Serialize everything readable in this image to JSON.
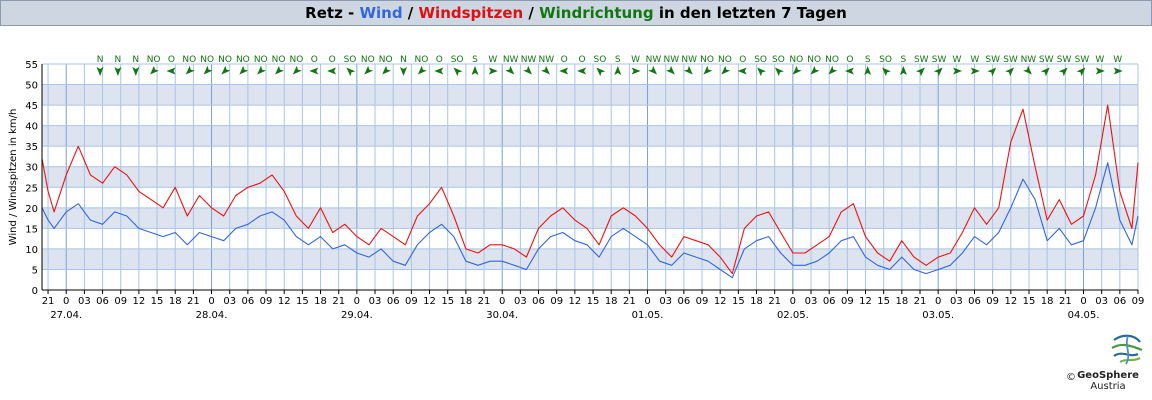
{
  "title": {
    "station": "Retz",
    "sep1": " - ",
    "wind": "Wind",
    "sep2": " / ",
    "gusts": "Windspitzen",
    "sep3": " / ",
    "direction": "Windrichtung",
    "suffix": " in den letzten 7 Tagen"
  },
  "logo": {
    "name": "GeoSphere",
    "sub": "Austria",
    "copyright": "©"
  },
  "colors": {
    "wind": "#3366dd",
    "gusts": "#ee1111",
    "direction": "#117711",
    "band": "#dde4ef",
    "grid": "#a8c4e8"
  },
  "chart_data": {
    "type": "line",
    "ylabel": "Wind / Windspitzen in km/h",
    "ylim": [
      0,
      55
    ],
    "yticks": [
      0,
      5,
      10,
      15,
      20,
      25,
      30,
      35,
      40,
      45,
      50,
      55
    ],
    "x_start_hour": 20,
    "x_span_hours": 181,
    "hour_ticks": [
      "21",
      "0",
      "03",
      "06",
      "09",
      "12",
      "15",
      "18",
      "21",
      "0",
      "03",
      "06",
      "09",
      "12",
      "15",
      "18",
      "21",
      "0",
      "03",
      "06",
      "09",
      "12",
      "15",
      "18",
      "21",
      "0",
      "03",
      "06",
      "09",
      "12",
      "15",
      "18",
      "21",
      "0",
      "03",
      "06",
      "09",
      "12",
      "15",
      "18",
      "21",
      "0",
      "03",
      "06",
      "09",
      "12",
      "15",
      "18",
      "21",
      "0",
      "03",
      "06",
      "09",
      "12",
      "15",
      "18",
      "21",
      "0",
      "03",
      "06",
      "09"
    ],
    "dates": [
      "27.04.",
      "28.04.",
      "29.04.",
      "30.04.",
      "01.05.",
      "02.05.",
      "03.05.",
      "04.05."
    ],
    "direction_labels": [
      "N",
      "N",
      "N",
      "NO",
      "O",
      "NO",
      "NO",
      "NO",
      "NO",
      "NO",
      "NO",
      "NO",
      "O",
      "O",
      "SO",
      "NO",
      "NO",
      "N",
      "NO",
      "O",
      "SO",
      "S",
      "W",
      "NW",
      "NW",
      "NW",
      "O",
      "O",
      "SO",
      "S",
      "W",
      "NW",
      "NW",
      "NW",
      "NO",
      "NO",
      "O",
      "SO",
      "SO",
      "NO",
      "NO",
      "NO",
      "O",
      "S",
      "SO",
      "S",
      "SW",
      "SW",
      "W",
      "W",
      "SW",
      "SW",
      "NW",
      "SW",
      "SW",
      "SW",
      "W",
      "W"
    ],
    "series": [
      {
        "name": "Wind",
        "x": [
          20,
          21,
          22,
          24,
          26,
          28,
          30,
          32,
          34,
          36,
          38,
          40,
          42,
          44,
          46,
          48,
          50,
          52,
          54,
          56,
          58,
          60,
          62,
          64,
          66,
          68,
          70,
          72,
          74,
          76,
          78,
          80,
          82,
          84,
          86,
          88,
          90,
          92,
          94,
          96,
          98,
          100,
          102,
          104,
          106,
          108,
          110,
          112,
          114,
          116,
          118,
          120,
          122,
          124,
          126,
          128,
          130,
          132,
          134,
          136,
          138,
          140,
          142,
          144,
          146,
          148,
          150,
          152,
          154,
          156,
          158,
          160,
          162,
          164,
          166,
          168,
          170,
          172,
          174,
          176,
          178,
          180,
          182,
          184,
          186,
          188,
          190,
          192,
          194,
          196,
          198,
          200,
          201
        ],
        "values": [
          20,
          17,
          15,
          19,
          21,
          17,
          16,
          19,
          18,
          15,
          14,
          13,
          14,
          11,
          14,
          13,
          12,
          15,
          16,
          18,
          19,
          17,
          13,
          11,
          13,
          10,
          11,
          9,
          8,
          10,
          7,
          6,
          11,
          14,
          16,
          13,
          7,
          6,
          7,
          7,
          6,
          5,
          10,
          13,
          14,
          12,
          11,
          8,
          13,
          15,
          13,
          11,
          7,
          6,
          9,
          8,
          7,
          5,
          3,
          10,
          12,
          13,
          9,
          6,
          6,
          7,
          9,
          12,
          13,
          8,
          6,
          5,
          8,
          5,
          4,
          5,
          6,
          9,
          13,
          11,
          14,
          20,
          27,
          22,
          12,
          15,
          11,
          12,
          20,
          31,
          17,
          11,
          18
        ]
      },
      {
        "name": "Windspitzen",
        "x": [
          20,
          21,
          22,
          24,
          26,
          28,
          30,
          32,
          34,
          36,
          38,
          40,
          42,
          44,
          46,
          48,
          50,
          52,
          54,
          56,
          58,
          60,
          62,
          64,
          66,
          68,
          70,
          72,
          74,
          76,
          78,
          80,
          82,
          84,
          86,
          88,
          90,
          92,
          94,
          96,
          98,
          100,
          102,
          104,
          106,
          108,
          110,
          112,
          114,
          116,
          118,
          120,
          122,
          124,
          126,
          128,
          130,
          132,
          134,
          136,
          138,
          140,
          142,
          144,
          146,
          148,
          150,
          152,
          154,
          156,
          158,
          160,
          162,
          164,
          166,
          168,
          170,
          172,
          174,
          176,
          178,
          180,
          182,
          184,
          186,
          188,
          190,
          192,
          194,
          196,
          198,
          200,
          201
        ],
        "values": [
          32,
          24,
          19,
          28,
          35,
          28,
          26,
          30,
          28,
          24,
          22,
          20,
          25,
          18,
          23,
          20,
          18,
          23,
          25,
          26,
          28,
          24,
          18,
          15,
          20,
          14,
          16,
          13,
          11,
          15,
          13,
          11,
          18,
          21,
          25,
          18,
          10,
          9,
          11,
          11,
          10,
          8,
          15,
          18,
          20,
          17,
          15,
          11,
          18,
          20,
          18,
          15,
          11,
          8,
          13,
          12,
          11,
          8,
          4,
          15,
          18,
          19,
          14,
          9,
          9,
          11,
          13,
          19,
          21,
          13,
          9,
          7,
          12,
          8,
          6,
          8,
          9,
          14,
          20,
          16,
          20,
          36,
          44,
          30,
          17,
          22,
          16,
          18,
          28,
          45,
          24,
          15,
          31
        ]
      }
    ]
  }
}
